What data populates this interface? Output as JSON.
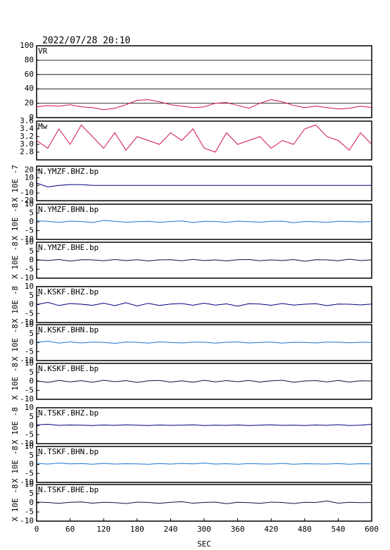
{
  "chart_data": [
    {
      "type": "line",
      "title": "2022/07/28 20:10",
      "label": "VR",
      "color": "#d0104c",
      "grid": true,
      "xlim": [
        0,
        600
      ],
      "ylim": [
        0,
        100
      ],
      "yticks": [
        0,
        20,
        40,
        60,
        80,
        100
      ],
      "x": [
        0,
        20,
        40,
        60,
        80,
        100,
        120,
        140,
        160,
        180,
        200,
        220,
        240,
        260,
        280,
        300,
        320,
        340,
        360,
        380,
        400,
        420,
        440,
        460,
        480,
        500,
        520,
        540,
        560,
        580,
        600
      ],
      "values": [
        15,
        17,
        16,
        18,
        15,
        14,
        11,
        13,
        18,
        24,
        25,
        22,
        18,
        16,
        14,
        15,
        20,
        21,
        17,
        13,
        20,
        25,
        22,
        17,
        14,
        16,
        14,
        12,
        13,
        16,
        14
      ]
    },
    {
      "type": "line",
      "label": "Mw",
      "color": "#d0104c",
      "grid": false,
      "xlim": [
        0,
        600
      ],
      "ylim": [
        2.6,
        3.6
      ],
      "yticks": [
        2.8,
        {
          "value": 3,
          "label": "3.0"
        },
        3.2,
        3.4,
        3.6
      ],
      "x": [
        0,
        20,
        40,
        60,
        80,
        100,
        120,
        140,
        160,
        180,
        200,
        220,
        240,
        260,
        280,
        300,
        320,
        340,
        360,
        380,
        400,
        420,
        440,
        460,
        480,
        500,
        520,
        540,
        560,
        580,
        600
      ],
      "values": [
        3.1,
        2.9,
        3.4,
        3.0,
        3.5,
        3.2,
        2.9,
        3.3,
        2.85,
        3.2,
        3.1,
        3.0,
        3.3,
        3.1,
        3.4,
        2.9,
        2.8,
        3.3,
        3.0,
        3.1,
        3.2,
        2.9,
        3.1,
        3.0,
        3.4,
        3.5,
        3.2,
        3.1,
        2.85,
        3.3,
        3.0
      ]
    },
    {
      "type": "line",
      "label": "N.YMZF.BHZ.bp",
      "ylabel": "X 10E -7",
      "color": "#000080",
      "xlim": [
        0,
        600
      ],
      "ylim": [
        -20,
        25
      ],
      "yticks": [
        -20,
        -10,
        0,
        10,
        20
      ],
      "x": [
        0,
        20,
        40,
        60,
        80,
        100,
        120,
        140,
        160,
        180,
        200,
        220,
        240,
        260,
        280,
        300,
        320,
        340,
        360,
        380,
        400,
        420,
        440,
        460,
        480,
        500,
        520,
        540,
        560,
        580,
        600
      ],
      "values": [
        3,
        -2,
        0,
        1,
        1,
        0,
        0,
        0,
        0,
        0,
        0,
        0,
        0,
        0,
        0,
        0,
        0,
        0,
        0,
        0,
        0,
        0,
        0,
        0,
        0,
        0,
        0,
        0,
        0,
        0,
        0
      ]
    },
    {
      "type": "line",
      "label": "N.YMZF.BHN.bp",
      "ylabel": "X 10E -8",
      "color": "#1c74d0",
      "xlim": [
        0,
        600
      ],
      "ylim": [
        -10,
        10
      ],
      "yticks": [
        -10,
        -5,
        0,
        5,
        10
      ],
      "x": [
        0,
        20,
        40,
        60,
        80,
        100,
        120,
        140,
        160,
        180,
        200,
        220,
        240,
        260,
        280,
        300,
        320,
        340,
        360,
        380,
        400,
        420,
        440,
        460,
        480,
        500,
        520,
        540,
        560,
        580,
        600
      ],
      "values": [
        0.5,
        0.3,
        -0.3,
        0.4,
        0.2,
        -0.4,
        0.8,
        0.3,
        -0.2,
        0.1,
        0.3,
        -0.3,
        0.2,
        0.5,
        -0.4,
        0.3,
        0.2,
        -0.3,
        0.4,
        0.1,
        -0.2,
        0.3,
        0.4,
        -0.5,
        0.2,
        0.1,
        -0.3,
        0.3,
        0.2,
        -0.1,
        0.2
      ]
    },
    {
      "type": "line",
      "label": "N.YMZF.BHE.bp",
      "ylabel": "X 10E -8",
      "color": "#101040",
      "xlim": [
        0,
        600
      ],
      "ylim": [
        -10,
        10
      ],
      "yticks": [
        -10,
        -5,
        0,
        5,
        10
      ],
      "x": [
        0,
        20,
        40,
        60,
        80,
        100,
        120,
        140,
        160,
        180,
        200,
        220,
        240,
        260,
        280,
        300,
        320,
        340,
        360,
        380,
        400,
        420,
        440,
        460,
        480,
        500,
        520,
        540,
        560,
        580,
        600
      ],
      "values": [
        0.3,
        -0.2,
        0.4,
        -0.5,
        0.3,
        0.2,
        -0.3,
        0.4,
        -0.2,
        0.3,
        -0.4,
        0.2,
        0.3,
        -0.3,
        0.5,
        -0.2,
        0.2,
        -0.4,
        0.3,
        0.4,
        -0.3,
        0.2,
        -0.2,
        0.4,
        -0.6,
        0.3,
        0.2,
        -0.3,
        0.6,
        -0.2,
        0.2
      ]
    },
    {
      "type": "line",
      "label": "N.KSKF.BHZ.bp",
      "ylabel": "X 10E -8",
      "color": "#000080",
      "xlim": [
        0,
        600
      ],
      "ylim": [
        -10,
        10
      ],
      "yticks": [
        -10,
        -5,
        0,
        5,
        10
      ],
      "x": [
        0,
        20,
        40,
        60,
        80,
        100,
        120,
        140,
        160,
        180,
        200,
        220,
        240,
        260,
        280,
        300,
        320,
        340,
        360,
        380,
        400,
        420,
        440,
        460,
        480,
        500,
        520,
        540,
        560,
        580,
        600
      ],
      "values": [
        0,
        1.2,
        -0.5,
        0.6,
        0.2,
        -0.4,
        0.8,
        -0.6,
        1,
        -0.8,
        0.7,
        -0.5,
        0.3,
        0.6,
        -0.4,
        0.8,
        -0.3,
        0.4,
        -0.9,
        0.5,
        0.3,
        -0.4,
        0.6,
        -0.3,
        0.2,
        0.5,
        -0.6,
        0.3,
        0.2,
        -0.2,
        0.3
      ]
    },
    {
      "type": "line",
      "label": "N.KSKF.BHN.bp",
      "ylabel": "X 10E -8",
      "color": "#1c74d0",
      "xlim": [
        0,
        600
      ],
      "ylim": [
        -10,
        10
      ],
      "yticks": [
        -10,
        -5,
        0,
        5,
        10
      ],
      "x": [
        0,
        20,
        40,
        60,
        80,
        100,
        120,
        140,
        160,
        180,
        200,
        220,
        240,
        260,
        280,
        300,
        320,
        340,
        360,
        380,
        400,
        420,
        440,
        460,
        480,
        500,
        520,
        540,
        560,
        580,
        600
      ],
      "values": [
        0.2,
        0.8,
        -0.3,
        0.4,
        -0.2,
        0.3,
        0.1,
        -0.4,
        0.3,
        0.2,
        -0.3,
        0.4,
        0.1,
        -0.2,
        0.3,
        0.2,
        -0.3,
        0.2,
        0.4,
        -0.2,
        0.1,
        0.3,
        -0.3,
        0.2,
        0.1,
        -0.2,
        0.3,
        0.2,
        -0.1,
        0.2,
        0.1
      ]
    },
    {
      "type": "line",
      "label": "N.KSKF.BHE.bp",
      "ylabel": "X 10E -8",
      "color": "#101040",
      "xlim": [
        0,
        600
      ],
      "ylim": [
        -10,
        10
      ],
      "yticks": [
        -10,
        -5,
        0,
        5,
        10
      ],
      "x": [
        0,
        20,
        40,
        60,
        80,
        100,
        120,
        140,
        160,
        180,
        200,
        220,
        240,
        260,
        280,
        300,
        320,
        340,
        360,
        380,
        400,
        420,
        440,
        460,
        480,
        500,
        520,
        540,
        560,
        580,
        600
      ],
      "values": [
        0.3,
        -0.6,
        0.5,
        -0.3,
        0.4,
        -0.5,
        0.6,
        -0.2,
        0.4,
        -0.6,
        0.3,
        0.5,
        -0.4,
        0.3,
        -0.5,
        0.6,
        -0.3,
        0.4,
        -0.2,
        0.5,
        -0.4,
        0.3,
        0.6,
        -0.5,
        0.2,
        0.4,
        -0.3,
        0.5,
        -0.4,
        0.3,
        0.2
      ]
    },
    {
      "type": "line",
      "label": "N.TSKF.BHZ.bp",
      "ylabel": "X 10E -8",
      "color": "#000080",
      "xlim": [
        0,
        600
      ],
      "ylim": [
        -10,
        10
      ],
      "yticks": [
        -10,
        -5,
        0,
        5,
        10
      ],
      "x": [
        0,
        20,
        40,
        60,
        80,
        100,
        120,
        140,
        160,
        180,
        200,
        220,
        240,
        260,
        280,
        300,
        320,
        340,
        360,
        380,
        400,
        420,
        440,
        460,
        480,
        500,
        520,
        540,
        560,
        580,
        600
      ],
      "values": [
        0.5,
        0.8,
        0.2,
        0.4,
        0.3,
        0.1,
        0.4,
        0.2,
        0.5,
        0.3,
        0.1,
        0.4,
        0.2,
        0.3,
        0.5,
        0.1,
        0.3,
        0.2,
        0.4,
        0.1,
        0.3,
        0.5,
        0.2,
        0.3,
        0.1,
        0.4,
        0.2,
        0.6,
        0.1,
        0.3,
        0.8
      ]
    },
    {
      "type": "line",
      "label": "N.TSKF.BHN.bp",
      "ylabel": "X 10E -8",
      "color": "#1c74d0",
      "xlim": [
        0,
        600
      ],
      "ylim": [
        -10,
        10
      ],
      "yticks": [
        -10,
        -5,
        0,
        5,
        10
      ],
      "x": [
        0,
        20,
        40,
        60,
        80,
        100,
        120,
        140,
        160,
        180,
        200,
        220,
        240,
        260,
        280,
        300,
        320,
        340,
        360,
        380,
        400,
        420,
        440,
        460,
        480,
        500,
        520,
        540,
        560,
        580,
        600
      ],
      "values": [
        0.6,
        0.2,
        0.8,
        0.3,
        0.5,
        0.1,
        0.6,
        0.2,
        0.4,
        0.3,
        0.1,
        0.5,
        0.2,
        0.6,
        0.3,
        0.8,
        0.2,
        0.4,
        0.1,
        0.5,
        0.3,
        0.2,
        0.6,
        0.1,
        0.4,
        0.3,
        0.2,
        0.5,
        0.1,
        0.4,
        0.3
      ]
    },
    {
      "type": "line",
      "label": "N.TSKF.BHE.bp",
      "ylabel": "X 10E -8",
      "color": "#101040",
      "xlabel": "SEC",
      "xlim": [
        0,
        600
      ],
      "ylim": [
        -10,
        10
      ],
      "yticks": [
        -10,
        -5,
        0,
        5,
        10
      ],
      "xticks": [
        0,
        60,
        120,
        180,
        240,
        300,
        360,
        420,
        480,
        540,
        600
      ],
      "x": [
        0,
        20,
        40,
        60,
        80,
        100,
        120,
        140,
        160,
        180,
        200,
        220,
        240,
        260,
        280,
        300,
        320,
        340,
        360,
        380,
        400,
        420,
        440,
        460,
        480,
        500,
        520,
        540,
        560,
        580,
        600
      ],
      "values": [
        0.4,
        0.2,
        -0.3,
        0.3,
        0.5,
        -0.2,
        0.3,
        0.1,
        -0.4,
        0.4,
        0.2,
        -0.3,
        0.3,
        0.6,
        -0.2,
        0.2,
        0.4,
        -0.5,
        0.3,
        0.1,
        -0.3,
        0.4,
        0.2,
        -0.4,
        0.3,
        0.2,
        1,
        -0.2,
        0.3,
        0.1,
        0.2
      ]
    }
  ]
}
